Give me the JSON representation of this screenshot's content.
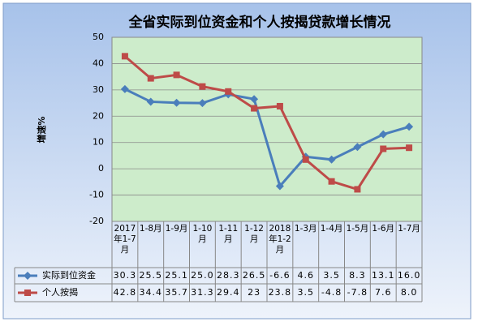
{
  "chart_data": {
    "type": "line",
    "title": "全省实际到位资金和个人按揭贷款增长情况",
    "y_label": "增速%",
    "categories": [
      "2017年1-7月",
      "1-8月",
      "1-9月",
      "1-10月",
      "1-11月",
      "1-12月",
      "2018年1-2月",
      "1-3月",
      "1-4月",
      "1-5月",
      "1-6月",
      "1-7月"
    ],
    "series": [
      {
        "name": "实际到位资金",
        "color": "#4a7ebb",
        "marker": "diamond",
        "values": [
          30.3,
          25.5,
          25.1,
          25.0,
          28.3,
          26.5,
          -6.6,
          4.6,
          3.5,
          8.3,
          13.1,
          16.0
        ],
        "value_labels": [
          "30.3",
          "25.5",
          "25.1",
          "25.0",
          "28.3",
          "26.5",
          "-6.6",
          "4.6",
          "3.5",
          "8.3",
          "13.1",
          "16.0"
        ]
      },
      {
        "name": "个人按揭",
        "color": "#be4b48",
        "marker": "square",
        "values": [
          42.8,
          34.4,
          35.7,
          31.3,
          29.4,
          23,
          23.8,
          3.5,
          -4.8,
          -7.8,
          7.6,
          8.0
        ],
        "value_labels": [
          "42.8",
          "34.4",
          "35.7",
          "31.3",
          "29.4",
          "23",
          "23.8",
          "3.5",
          "-4.8",
          "-7.8",
          "7.6",
          "8.0"
        ]
      }
    ],
    "ylim": [
      -20,
      50
    ],
    "yticks": [
      -20,
      -10,
      0,
      10,
      20,
      30,
      40,
      50
    ],
    "grid": true
  }
}
